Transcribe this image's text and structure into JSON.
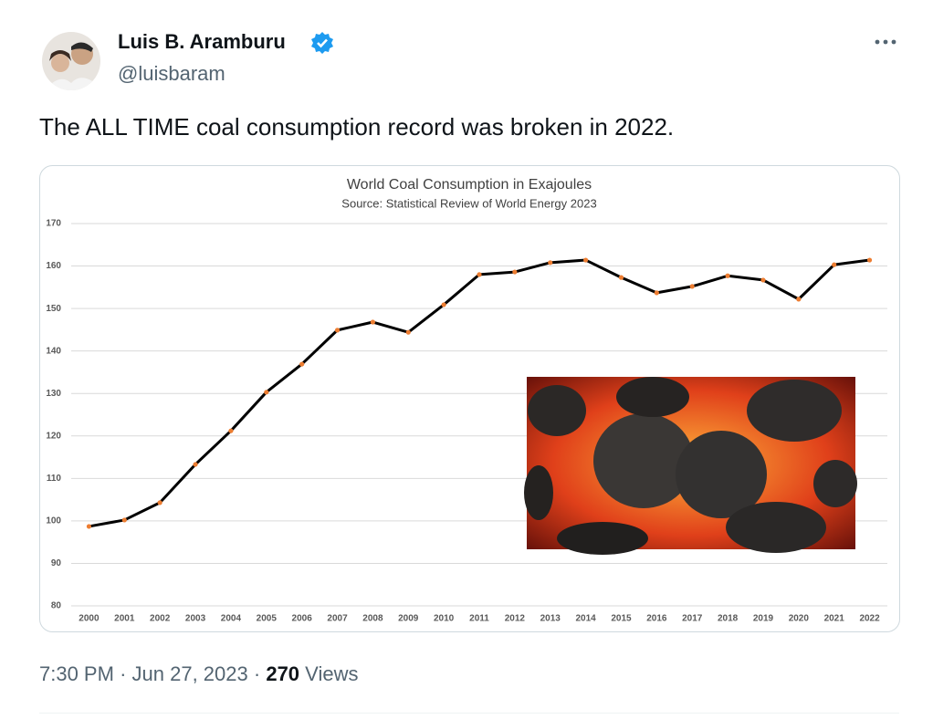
{
  "tweet": {
    "author_name": "Luis B. Aramburu",
    "handle": "@luisbaram",
    "text": "The ALL TIME coal consumption record was broken in 2022.",
    "time": "7:30 PM",
    "separator": "·",
    "date": "Jun 27, 2023",
    "views_count": "270",
    "views_label": "Views"
  },
  "chart_data": {
    "type": "line",
    "title": "World Coal Consumption in Exajoules",
    "subtitle": "Source: Statistical Review of World Energy 2023",
    "categories": [
      "2000",
      "2001",
      "2002",
      "2003",
      "2004",
      "2005",
      "2006",
      "2007",
      "2008",
      "2009",
      "2010",
      "2011",
      "2012",
      "2013",
      "2014",
      "2015",
      "2016",
      "2017",
      "2018",
      "2019",
      "2020",
      "2021",
      "2022"
    ],
    "values": [
      98.7,
      100.2,
      104.3,
      113.3,
      121.2,
      130.3,
      136.9,
      144.9,
      146.8,
      144.4,
      150.9,
      158.0,
      158.6,
      160.8,
      161.4,
      157.3,
      153.7,
      155.2,
      157.7,
      156.7,
      152.2,
      160.3,
      161.4
    ],
    "color": "#000000",
    "marker_color": "#ed7d31",
    "ylim": [
      80,
      170
    ],
    "yticks": [
      80,
      90,
      100,
      110,
      120,
      130,
      140,
      150,
      160,
      170
    ],
    "grid": true
  }
}
